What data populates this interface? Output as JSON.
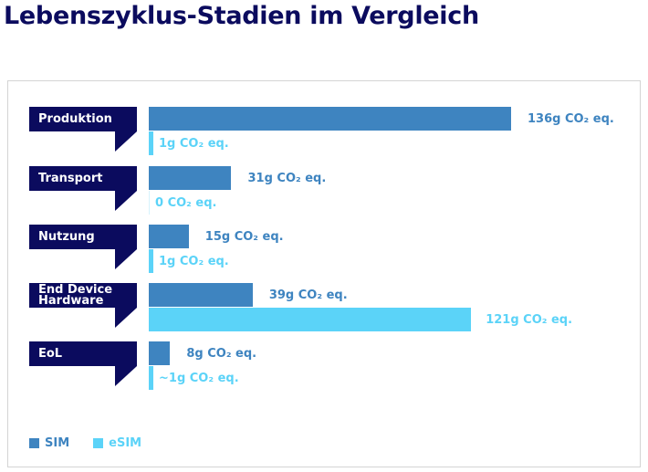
{
  "title": "Lebenszyklus-Stadien im Vergleich",
  "colors": {
    "title": "#0b0b5e",
    "label_bg": "#0b0b5e",
    "sim": "#3e84c0",
    "esim": "#5bd3f8"
  },
  "chart_data": {
    "type": "bar",
    "orientation": "horizontal",
    "title": "Lebenszyklus-Stadien im Vergleich",
    "categories": [
      "Produktion",
      "Transport",
      "Nutzung",
      "End Device Hardware",
      "EoL"
    ],
    "series": [
      {
        "name": "SIM",
        "values": [
          136,
          31,
          15,
          39,
          8
        ],
        "labels": [
          "136g CO₂ eq.",
          "31g CO₂ eq.",
          "15g CO₂ eq.",
          "39g CO₂ eq.",
          "8g CO₂ eq."
        ]
      },
      {
        "name": "eSIM",
        "values": [
          1,
          0,
          1,
          121,
          1
        ],
        "labels": [
          "1g CO₂ eq.",
          "0 CO₂ eq.",
          "1g CO₂ eq.",
          "121g CO₂ eq.",
          "~1g CO₂ eq."
        ]
      }
    ],
    "xlabel": "",
    "ylabel": "",
    "xlim": [
      0,
      136
    ],
    "grid": false,
    "legend": {
      "position": "bottom-left",
      "entries": [
        "SIM",
        "eSIM"
      ]
    }
  }
}
